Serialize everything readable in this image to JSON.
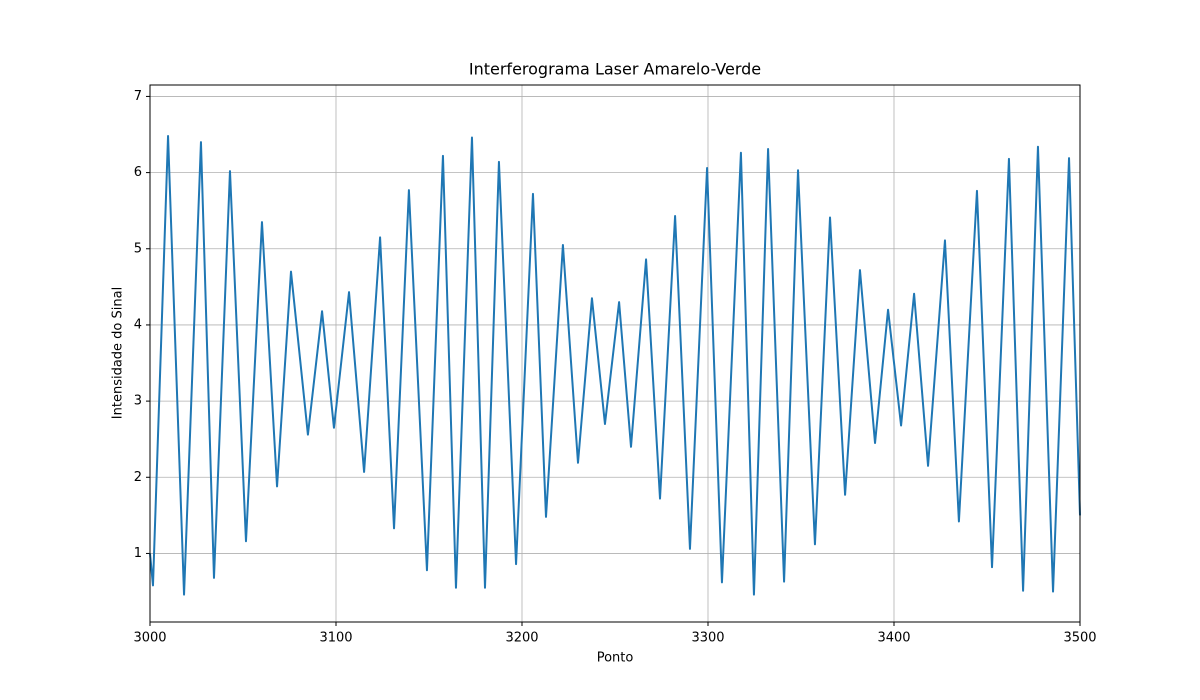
{
  "chart_data": {
    "type": "line",
    "title": "Interferograma Laser Amarelo-Verde",
    "x_label": "Ponto",
    "y_label": "Intensidade do Sinal",
    "color": "#1f77b4",
    "grid": true,
    "xlim": [
      3000,
      3500
    ],
    "ylim": [
      0.1,
      7.15
    ],
    "xticks": [
      3000,
      3100,
      3200,
      3300,
      3400,
      3500
    ],
    "yticks": [
      1,
      2,
      3,
      4,
      5,
      6,
      7
    ],
    "x": [
      3000,
      3001.6,
      3009.7,
      3018.3,
      3027.4,
      3034.4,
      3043,
      3051.6,
      3060.2,
      3068.3,
      3075.8,
      3084.9,
      3092.5,
      3098.9,
      3107,
      3115.1,
      3123.7,
      3131.2,
      3139.2,
      3148.9,
      3157.5,
      3164.5,
      3173.1,
      3180.1,
      3187.6,
      3196.8,
      3205.9,
      3212.9,
      3222,
      3230.1,
      3237.6,
      3244.6,
      3252.2,
      3258.6,
      3266.7,
      3274.2,
      3282.3,
      3290.3,
      3299.5,
      3307.5,
      3317.7,
      3324.7,
      3332.3,
      3340.9,
      3348.4,
      3357.5,
      3365.6,
      3373.7,
      3381.7,
      3389.8,
      3396.8,
      3403.8,
      3410.8,
      3418.3,
      3427.4,
      3434.9,
      3444.6,
      3452.7,
      3461.8,
      3469.4,
      3477.4,
      3485.5,
      3494.1,
      3500
    ],
    "values": [
      1.0,
      0.58,
      6.48,
      0.46,
      6.4,
      0.68,
      6.02,
      1.16,
      5.35,
      1.88,
      4.7,
      2.56,
      4.18,
      2.65,
      4.43,
      2.07,
      5.15,
      1.33,
      5.77,
      0.78,
      6.22,
      0.55,
      6.46,
      0.55,
      6.14,
      0.86,
      5.72,
      1.48,
      5.05,
      2.19,
      4.35,
      2.7,
      4.3,
      2.4,
      4.86,
      1.72,
      5.43,
      1.06,
      6.06,
      0.62,
      6.26,
      0.46,
      6.31,
      0.63,
      6.03,
      1.12,
      5.41,
      1.77,
      4.72,
      2.45,
      4.2,
      2.68,
      4.41,
      2.15,
      5.11,
      1.42,
      5.76,
      0.82,
      6.18,
      0.51,
      6.34,
      0.5,
      6.19,
      1.5
    ]
  }
}
